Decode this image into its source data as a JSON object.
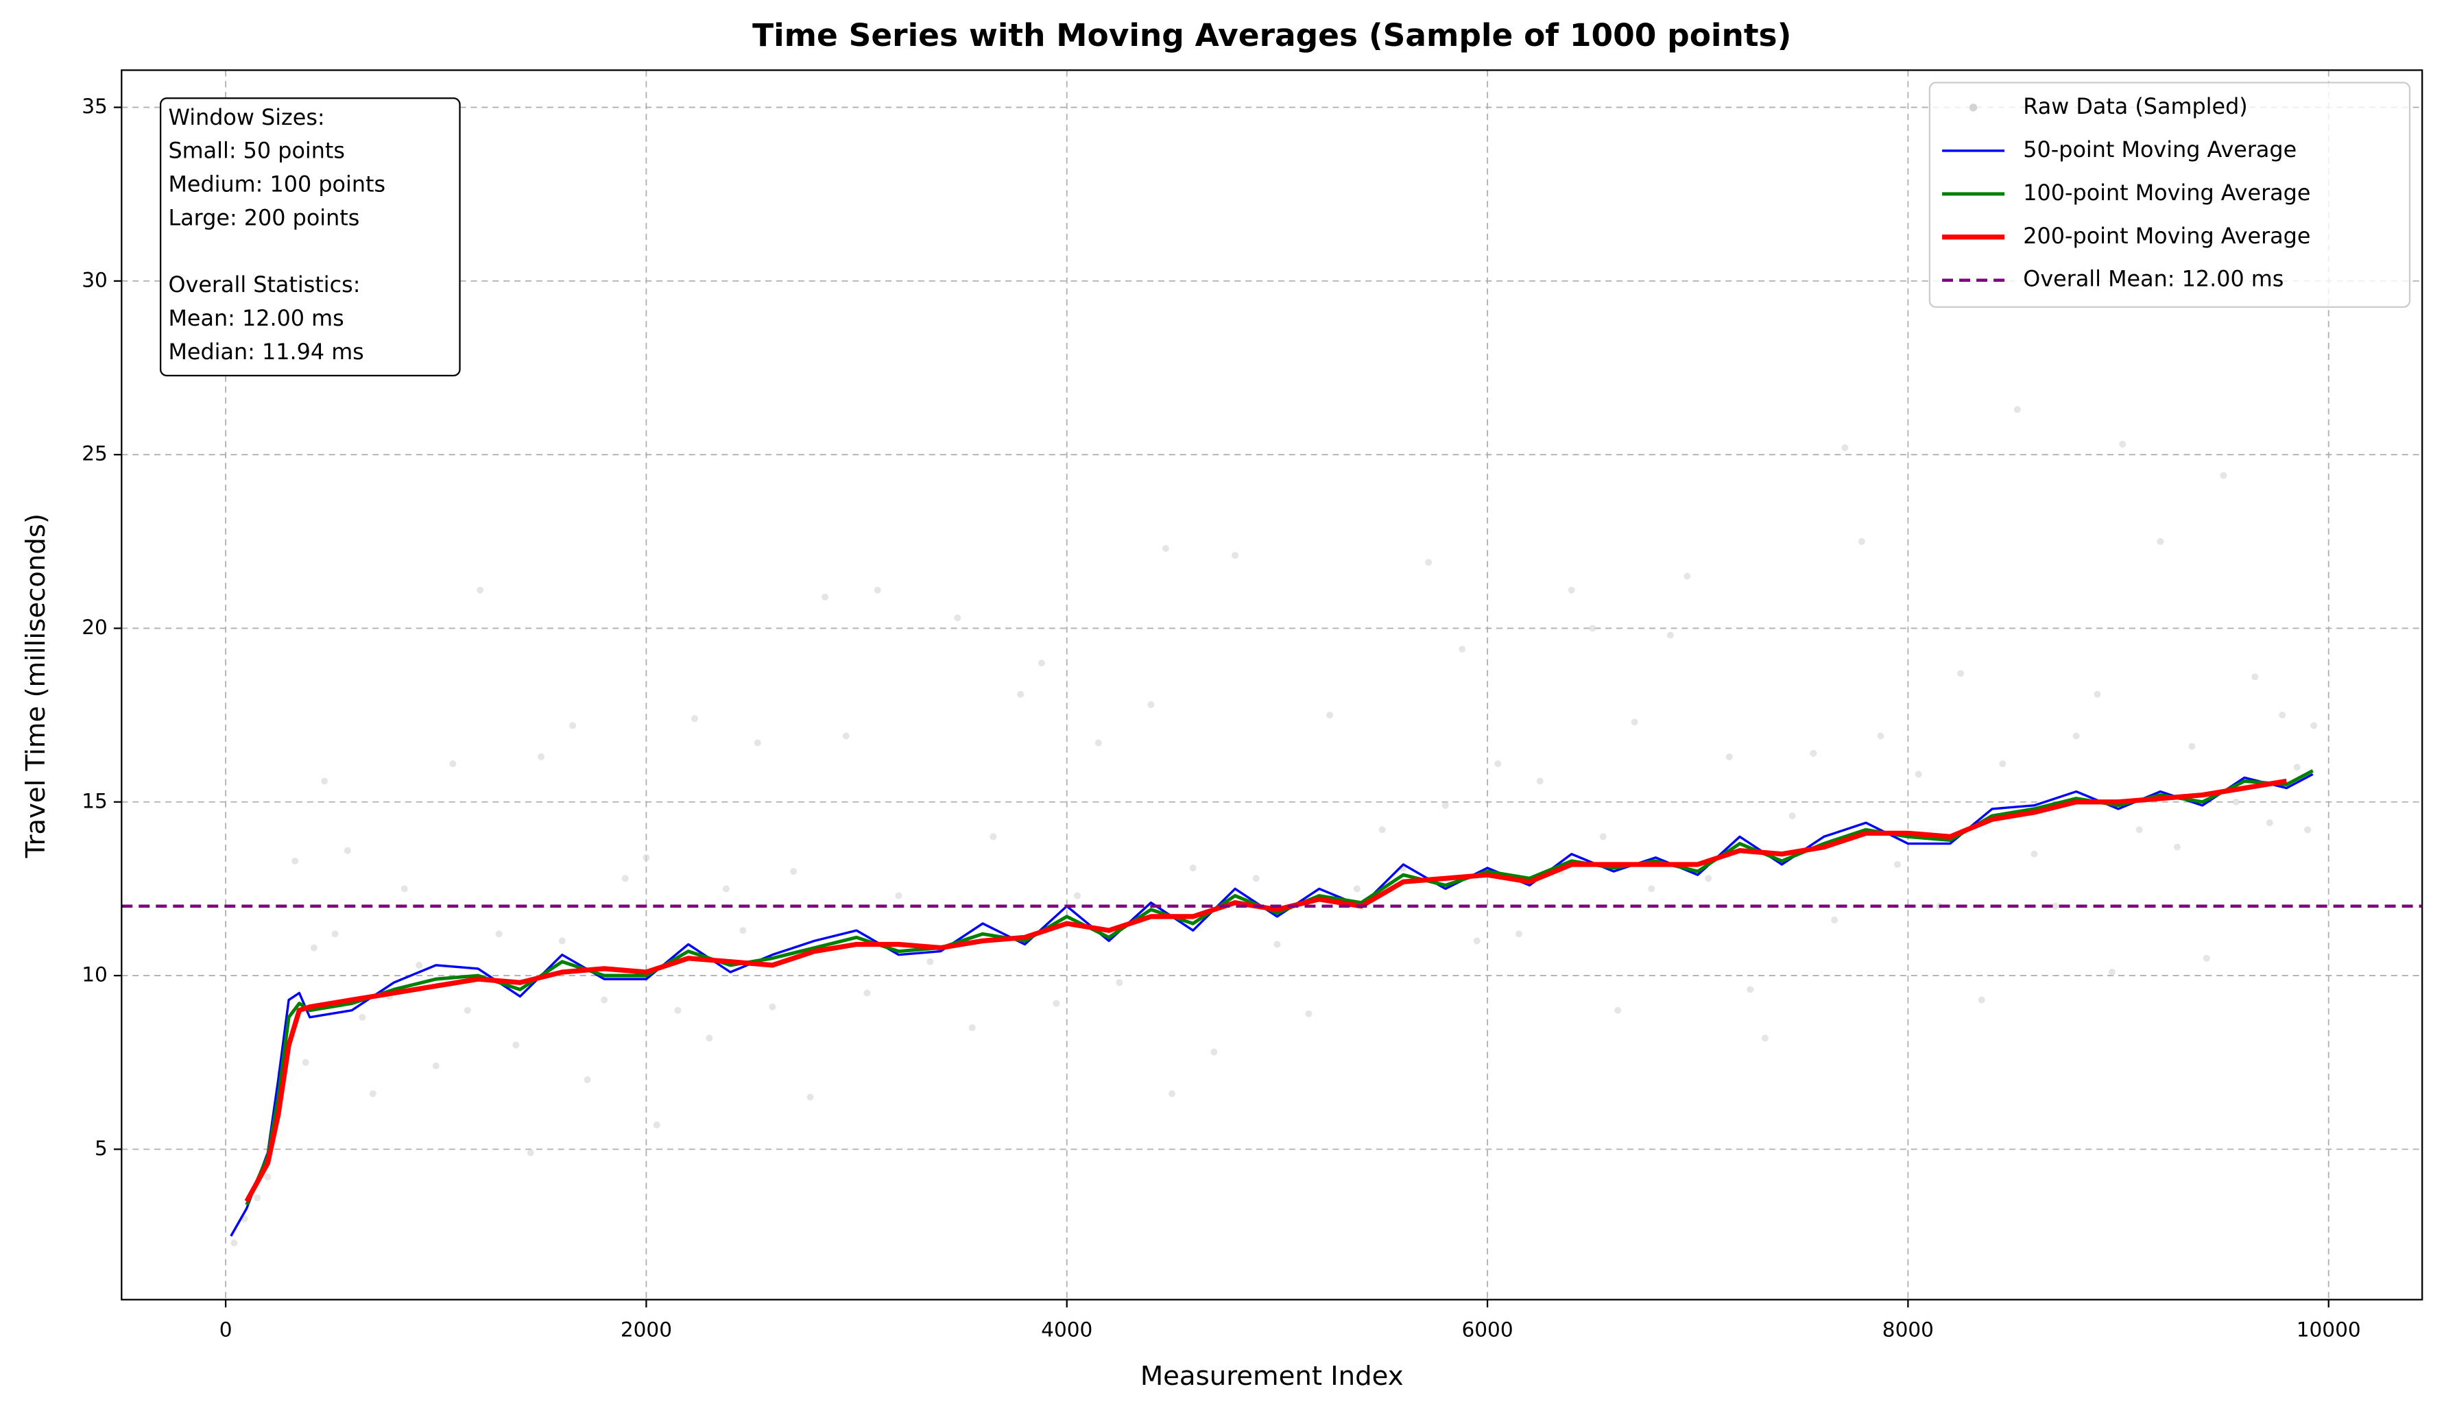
{
  "chart_data": {
    "type": "line",
    "title": "Time Series with Moving Averages (Sample of 1000 points)",
    "x_label": "Measurement Index",
    "y_label": "Travel Time (milliseconds)",
    "xlim": [
      -495,
      10445
    ],
    "ylim": [
      0.67,
      36.07
    ],
    "xticks": [
      0,
      2000,
      4000,
      6000,
      8000,
      10000
    ],
    "yticks": [
      5,
      10,
      15,
      20,
      25,
      30,
      35
    ],
    "grid": true,
    "legend": "upper right",
    "x": [
      25,
      100,
      200,
      250,
      300,
      350,
      400,
      600,
      800,
      1000,
      1200,
      1400,
      1600,
      1800,
      2000,
      2200,
      2400,
      2600,
      2800,
      3000,
      3200,
      3400,
      3600,
      3800,
      4000,
      4200,
      4400,
      4600,
      4800,
      5000,
      5200,
      5400,
      5600,
      5800,
      6000,
      6200,
      6400,
      6600,
      6800,
      7000,
      7200,
      7400,
      7600,
      7800,
      8000,
      8200,
      8400,
      8600,
      8800,
      9000,
      9200,
      9400,
      9600,
      9800,
      9925
    ],
    "scatter": {
      "name": "Raw Data (Sampled)",
      "color": "#d3d3d3",
      "x": [
        40,
        90,
        150,
        200,
        260,
        300,
        330,
        380,
        420,
        470,
        520,
        580,
        650,
        700,
        780,
        850,
        920,
        1000,
        1080,
        1150,
        1210,
        1300,
        1380,
        1450,
        1500,
        1600,
        1650,
        1720,
        1800,
        1900,
        2000,
        2050,
        2150,
        2230,
        2300,
        2380,
        2460,
        2530,
        2600,
        2700,
        2780,
        2850,
        2950,
        3050,
        3100,
        3200,
        3350,
        3480,
        3550,
        3650,
        3780,
        3880,
        3950,
        4050,
        4150,
        4250,
        4400,
        4470,
        4500,
        4600,
        4700,
        4800,
        4900,
        5000,
        5150,
        5250,
        5380,
        5500,
        5600,
        5720,
        5800,
        5880,
        5950,
        6050,
        6150,
        6250,
        6350,
        6400,
        6500,
        6550,
        6620,
        6700,
        6780,
        6870,
        6950,
        7050,
        7150,
        7250,
        7320,
        7450,
        7550,
        7650,
        7700,
        7780,
        7870,
        7950,
        8050,
        8150,
        8250,
        8350,
        8450,
        8520,
        8600,
        8700,
        8800,
        8900,
        8970,
        9020,
        9100,
        9200,
        9280,
        9350,
        9420,
        9500,
        9560,
        9650,
        9720,
        9780,
        9850,
        9900,
        9930
      ],
      "values": [
        2.3,
        3.0,
        3.6,
        4.2,
        7.2,
        8.1,
        13.3,
        7.5,
        10.8,
        15.6,
        11.2,
        13.6,
        8.8,
        6.6,
        9.4,
        12.5,
        10.3,
        7.4,
        16.1,
        9.0,
        21.1,
        11.2,
        8.0,
        4.9,
        16.3,
        11.0,
        17.2,
        7.0,
        9.3,
        12.8,
        13.4,
        5.7,
        9.0,
        17.4,
        8.2,
        12.5,
        11.3,
        16.7,
        9.1,
        13.0,
        6.5,
        20.9,
        16.9,
        9.5,
        21.1,
        12.3,
        10.4,
        20.3,
        8.5,
        14.0,
        18.1,
        19.0,
        9.2,
        12.3,
        16.7,
        9.8,
        17.8,
        22.3,
        6.6,
        13.1,
        7.8,
        22.1,
        12.8,
        10.9,
        8.9,
        17.5,
        12.5,
        14.2,
        13.1,
        21.9,
        14.9,
        19.4,
        11.0,
        16.1,
        11.2,
        15.6,
        13.0,
        21.1,
        20.0,
        14.0,
        9.0,
        17.3,
        12.5,
        19.8,
        21.5,
        12.8,
        16.3,
        9.6,
        8.2,
        14.6,
        16.4,
        11.6,
        25.2,
        22.5,
        16.9,
        13.2,
        15.8,
        12.0,
        18.7,
        9.3,
        16.1,
        26.3,
        13.5,
        12.0,
        16.9,
        18.1,
        10.1,
        25.3,
        14.2,
        22.5,
        13.7,
        16.6,
        10.5,
        24.4,
        15.0,
        18.6,
        14.4,
        17.5,
        16.0,
        14.2,
        17.2
      ]
    },
    "series": [
      {
        "name": "50-point Moving Average",
        "color": "#0000ff",
        "width": 1.5,
        "values": [
          2.5,
          3.3,
          4.9,
          7.0,
          9.3,
          9.5,
          8.8,
          9.0,
          9.8,
          10.3,
          10.2,
          9.4,
          10.6,
          9.9,
          9.9,
          10.9,
          10.1,
          10.6,
          11.0,
          11.3,
          10.6,
          10.7,
          11.5,
          10.9,
          12.0,
          11.0,
          12.1,
          11.3,
          12.5,
          11.7,
          12.5,
          12.0,
          13.2,
          12.5,
          13.1,
          12.6,
          13.5,
          13.0,
          13.4,
          12.9,
          14.0,
          13.2,
          14.0,
          14.4,
          13.8,
          13.8,
          14.8,
          14.9,
          15.3,
          14.8,
          15.3,
          14.9,
          15.7,
          15.4,
          15.8
        ]
      },
      {
        "name": "100-point Moving Average",
        "color": "#008000",
        "width": 2.2,
        "values": [
          null,
          3.4,
          4.8,
          6.5,
          8.8,
          9.2,
          9.0,
          9.2,
          9.6,
          9.9,
          10.0,
          9.6,
          10.4,
          10.0,
          10.0,
          10.7,
          10.3,
          10.5,
          10.8,
          11.1,
          10.7,
          10.8,
          11.2,
          11.0,
          11.7,
          11.1,
          11.9,
          11.5,
          12.3,
          11.8,
          12.3,
          12.1,
          12.9,
          12.6,
          13.0,
          12.8,
          13.3,
          13.1,
          13.3,
          13.0,
          13.8,
          13.3,
          13.8,
          14.2,
          14.0,
          13.9,
          14.6,
          14.8,
          15.1,
          14.9,
          15.2,
          15.0,
          15.6,
          15.5,
          15.9
        ]
      },
      {
        "name": "200-point Moving Average",
        "color": "#ff0000",
        "width": 3.2,
        "values": [
          null,
          3.5,
          4.6,
          6.0,
          8.0,
          9.0,
          9.1,
          9.3,
          9.5,
          9.7,
          9.9,
          9.8,
          10.1,
          10.2,
          10.1,
          10.5,
          10.4,
          10.3,
          10.7,
          10.9,
          10.9,
          10.8,
          11.0,
          11.1,
          11.5,
          11.3,
          11.7,
          11.7,
          12.1,
          11.9,
          12.2,
          12.0,
          12.7,
          12.8,
          12.9,
          12.7,
          13.2,
          13.2,
          13.2,
          13.2,
          13.6,
          13.5,
          13.7,
          14.1,
          14.1,
          14.0,
          14.5,
          14.7,
          15.0,
          15.0,
          15.1,
          15.2,
          15.4,
          15.6,
          null
        ]
      }
    ],
    "hline": {
      "name": "Overall Mean: 12.00 ms",
      "color": "#800080",
      "value": 12
    },
    "annotations": [
      [
        "Window Sizes:",
        "Small: 50 points",
        "Medium: 100 points",
        "Large: 200 points"
      ],
      [
        "Overall Statistics:",
        "Mean: 12.00 ms",
        "Median: 11.94 ms"
      ]
    ]
  }
}
